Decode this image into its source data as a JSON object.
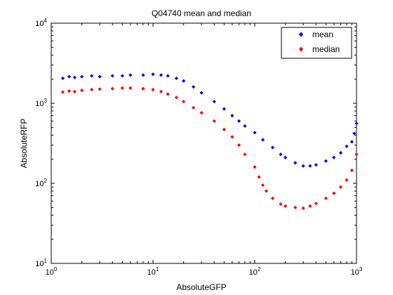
{
  "chart_data": {
    "type": "scatter",
    "title": "Q04740 mean and median",
    "xlabel": "AbsoluteGFP",
    "ylabel": "AbsoluteRFP",
    "xscale": "log",
    "yscale": "log",
    "xlim": [
      1,
      1000
    ],
    "ylim": [
      10,
      10000
    ],
    "grid": false,
    "legend_position": "top-right",
    "x_ticks": [
      {
        "value": 1,
        "base": "10",
        "exp": "0"
      },
      {
        "value": 10,
        "base": "10",
        "exp": "1"
      },
      {
        "value": 100,
        "base": "10",
        "exp": "2"
      },
      {
        "value": 1000,
        "base": "10",
        "exp": "3"
      }
    ],
    "y_ticks": [
      {
        "value": 10,
        "base": "10",
        "exp": "1"
      },
      {
        "value": 100,
        "base": "10",
        "exp": "2"
      },
      {
        "value": 1000,
        "base": "10",
        "exp": "3"
      },
      {
        "value": 10000,
        "base": "10",
        "exp": "4"
      }
    ],
    "series": [
      {
        "name": "mean",
        "color": "#0000ff",
        "marker": "diamond",
        "points": [
          [
            1.3,
            2050
          ],
          [
            1.5,
            2150
          ],
          [
            1.7,
            2100
          ],
          [
            2.0,
            2150
          ],
          [
            2.5,
            2200
          ],
          [
            3.0,
            2150
          ],
          [
            4.0,
            2200
          ],
          [
            5.0,
            2200
          ],
          [
            6.0,
            2250
          ],
          [
            8.0,
            2250
          ],
          [
            10.0,
            2300
          ],
          [
            12.0,
            2250
          ],
          [
            14.0,
            2200
          ],
          [
            17.0,
            2050
          ],
          [
            20.0,
            1900
          ],
          [
            25.0,
            1600
          ],
          [
            30.0,
            1350
          ],
          [
            40.0,
            1050
          ],
          [
            50.0,
            850
          ],
          [
            60.0,
            700
          ],
          [
            70.0,
            600
          ],
          [
            80.0,
            520
          ],
          [
            100.0,
            430
          ],
          [
            120.0,
            350
          ],
          [
            150.0,
            280
          ],
          [
            180.0,
            230
          ],
          [
            200.0,
            210
          ],
          [
            250.0,
            180
          ],
          [
            300.0,
            165
          ],
          [
            350.0,
            165
          ],
          [
            400.0,
            170
          ],
          [
            500.0,
            190
          ],
          [
            600.0,
            210
          ],
          [
            700.0,
            240
          ],
          [
            800.0,
            290
          ],
          [
            900.0,
            330
          ],
          [
            950.0,
            420
          ],
          [
            1000.0,
            560
          ]
        ]
      },
      {
        "name": "median",
        "color": "#ff0000",
        "marker": "diamond",
        "points": [
          [
            1.3,
            1380
          ],
          [
            1.5,
            1420
          ],
          [
            1.7,
            1400
          ],
          [
            2.0,
            1450
          ],
          [
            2.5,
            1480
          ],
          [
            3.0,
            1500
          ],
          [
            4.0,
            1520
          ],
          [
            5.0,
            1550
          ],
          [
            6.0,
            1550
          ],
          [
            8.0,
            1520
          ],
          [
            10.0,
            1480
          ],
          [
            12.0,
            1400
          ],
          [
            14.0,
            1300
          ],
          [
            17.0,
            1180
          ],
          [
            20.0,
            1050
          ],
          [
            25.0,
            880
          ],
          [
            30.0,
            760
          ],
          [
            40.0,
            600
          ],
          [
            50.0,
            470
          ],
          [
            60.0,
            380
          ],
          [
            70.0,
            300
          ],
          [
            80.0,
            230
          ],
          [
            100.0,
            160
          ],
          [
            110.0,
            120
          ],
          [
            120.0,
            95
          ],
          [
            130.0,
            80
          ],
          [
            150.0,
            65
          ],
          [
            180.0,
            55
          ],
          [
            200.0,
            52
          ],
          [
            250.0,
            50
          ],
          [
            300.0,
            49
          ],
          [
            350.0,
            52
          ],
          [
            400.0,
            56
          ],
          [
            500.0,
            65
          ],
          [
            600.0,
            75
          ],
          [
            700.0,
            90
          ],
          [
            800.0,
            110
          ],
          [
            900.0,
            145
          ],
          [
            1000.0,
            230
          ]
        ]
      }
    ]
  }
}
